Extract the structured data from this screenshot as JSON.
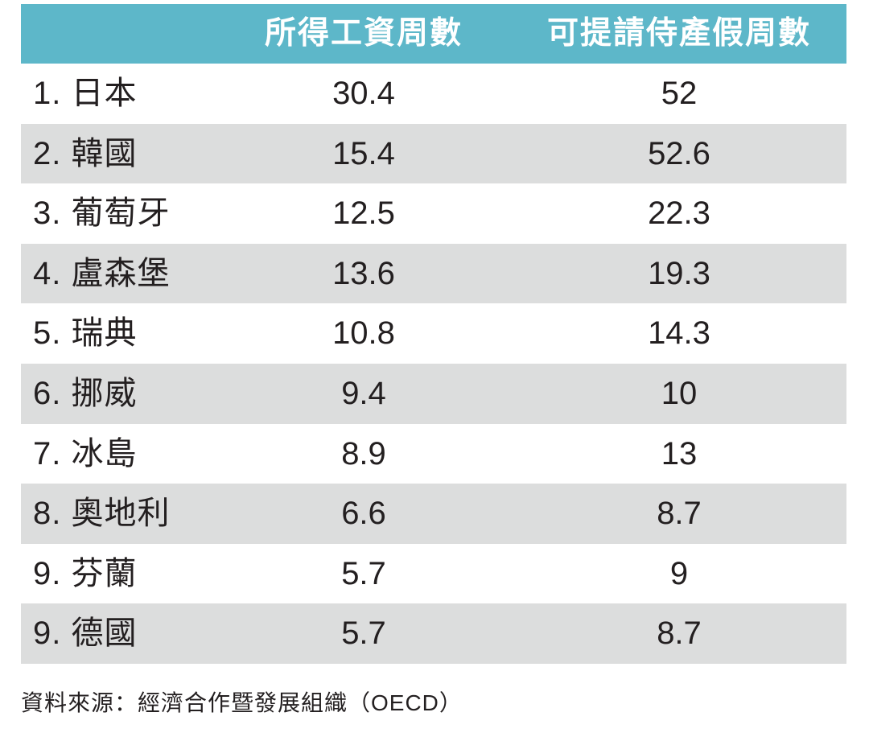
{
  "chart_data": {
    "type": "table",
    "columns": [
      "",
      "所得工資周數",
      "可提請侍產假周數"
    ],
    "rows": [
      {
        "country": "1. 日本",
        "paid_weeks": "30.4",
        "leave_weeks": "52"
      },
      {
        "country": "2. 韓國",
        "paid_weeks": "15.4",
        "leave_weeks": "52.6"
      },
      {
        "country": "3. 葡萄牙",
        "paid_weeks": "12.5",
        "leave_weeks": "22.3"
      },
      {
        "country": "4. 盧森堡",
        "paid_weeks": "13.6",
        "leave_weeks": "19.3"
      },
      {
        "country": "5. 瑞典",
        "paid_weeks": "10.8",
        "leave_weeks": "14.3"
      },
      {
        "country": "6. 挪威",
        "paid_weeks": "9.4",
        "leave_weeks": "10"
      },
      {
        "country": "7. 冰島",
        "paid_weeks": "8.9",
        "leave_weeks": "13"
      },
      {
        "country": "8. 奧地利",
        "paid_weeks": "6.6",
        "leave_weeks": "8.7"
      },
      {
        "country": "9. 芬蘭",
        "paid_weeks": "5.7",
        "leave_weeks": "9"
      },
      {
        "country": "9. 德國",
        "paid_weeks": "5.7",
        "leave_weeks": "8.7"
      }
    ],
    "source": "資料來源：經濟合作暨發展組織（OECD）"
  },
  "colors": {
    "header_bg": "#5db7c9",
    "header_text": "#ffffff",
    "row_shade": "#dcdddd",
    "text": "#231f20"
  }
}
